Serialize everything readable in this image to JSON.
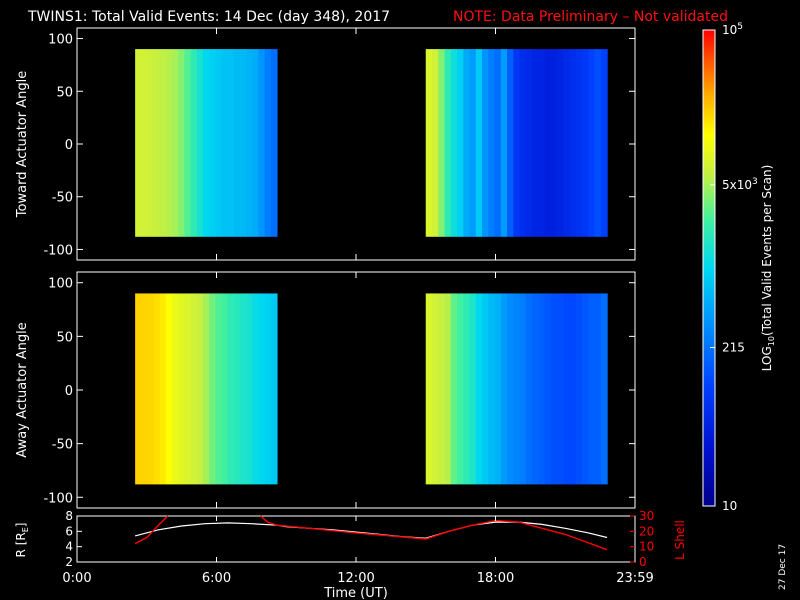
{
  "header": {
    "title": "TWINS1: Total Valid Events: 14 Dec (day 348), 2017",
    "note": "NOTE: Data Preliminary – Not validated",
    "note_color": "#ff1010"
  },
  "footer": {
    "date_stamp": "27 Dec 17"
  },
  "chart_data": [
    {
      "type": "heatmap",
      "panel": "top",
      "title": "",
      "ylabel": "Toward Actuator Angle",
      "ylim": [
        -110,
        110
      ],
      "yticks": [
        100,
        50,
        0,
        -50,
        -100
      ],
      "xlim": [
        0,
        24
      ],
      "data_blocks": [
        {
          "t_start": 2.5,
          "t_end": 8.6,
          "angle_min": -88,
          "angle_max": 90,
          "log10_value_profile": [
            3.85,
            3.85,
            3.83,
            3.8,
            3.78,
            3.75,
            3.7,
            3.6,
            3.45,
            3.3,
            3.15,
            3.0,
            2.95,
            2.9,
            2.85,
            2.85,
            2.8,
            2.8,
            2.75,
            2.7,
            2.55,
            2.4,
            2.3
          ]
        },
        {
          "t_start": 15.0,
          "t_end": 22.8,
          "angle_min": -88,
          "angle_max": 90,
          "log10_value_profile": [
            3.9,
            3.85,
            3.6,
            3.3,
            3.1,
            2.95,
            2.7,
            2.6,
            2.9,
            2.55,
            2.4,
            2.3,
            2.6,
            2.2,
            1.9,
            1.8,
            1.75,
            1.7,
            1.7,
            1.65,
            1.65,
            1.7,
            1.75,
            1.8,
            1.85,
            1.9,
            2.0,
            2.1,
            2.0
          ]
        }
      ]
    },
    {
      "type": "heatmap",
      "panel": "bottom",
      "title": "",
      "ylabel": "Away Actuator Angle",
      "ylim": [
        -110,
        110
      ],
      "yticks": [
        100,
        50,
        0,
        -50,
        -100
      ],
      "xlim": [
        0,
        24
      ],
      "data_blocks": [
        {
          "t_start": 2.5,
          "t_end": 8.6,
          "angle_min": -88,
          "angle_max": 90,
          "log10_value_profile": [
            4.3,
            4.3,
            4.28,
            4.25,
            4.2,
            4.1,
            4.0,
            3.95,
            3.9,
            3.85,
            3.8,
            3.7,
            3.55,
            3.45,
            3.4,
            3.3,
            3.25,
            3.2,
            3.15,
            3.05,
            3.0,
            2.95,
            2.9
          ]
        },
        {
          "t_start": 15.0,
          "t_end": 22.8,
          "angle_min": -88,
          "angle_max": 90,
          "log10_value_profile": [
            3.9,
            3.85,
            3.8,
            3.75,
            3.5,
            3.4,
            3.3,
            3.2,
            3.0,
            2.9,
            2.8,
            2.75,
            2.6,
            2.5,
            2.45,
            2.4,
            2.3,
            2.25,
            2.2,
            2.15,
            2.1,
            2.1,
            2.05,
            2.05,
            2.1,
            2.15,
            2.2,
            2.2,
            2.3
          ]
        }
      ]
    },
    {
      "type": "line",
      "panel": "orbit",
      "ylabel": "R [R",
      "ylabel_sub": "E",
      "ylabel_close": "]",
      "ylim": [
        2,
        8
      ],
      "yticks": [
        8,
        6,
        4,
        2
      ],
      "y2label": "L Shell",
      "y2lim": [
        0,
        30
      ],
      "y2ticks": [
        30,
        20,
        10,
        0
      ],
      "y2_color": "#ff0000",
      "xlabel": "Time (UT)",
      "xlim": [
        0,
        24
      ],
      "xticks": [
        0,
        6,
        12,
        18,
        24
      ],
      "xticklabels": [
        "0:00",
        "6:00",
        "12:00",
        "18:00",
        "23:59"
      ],
      "series": [
        {
          "axis": "left",
          "color": "#ffffff",
          "x": [
            2.5,
            3.5,
            4.5,
            5.5,
            6.5,
            7.5,
            8.6,
            9.0,
            10,
            11,
            12,
            13,
            14,
            15.0,
            16,
            17,
            18,
            19,
            20,
            21,
            22,
            22.8
          ],
          "y": [
            5.4,
            6.2,
            6.7,
            7.0,
            7.1,
            7.0,
            6.8,
            6.6,
            6.4,
            6.2,
            5.9,
            5.6,
            5.3,
            5.1,
            6.0,
            6.8,
            7.2,
            7.2,
            6.9,
            6.4,
            5.8,
            5.2
          ]
        },
        {
          "axis": "right",
          "segments": [
            {
              "x": [
                2.5,
                3.0,
                3.5,
                3.9
              ],
              "y": [
                12,
                16,
                24,
                30
              ]
            },
            {
              "x": [
                7.9,
                8.2,
                8.6,
                10,
                12,
                13.5,
                15.0,
                16,
                17,
                18,
                19,
                20,
                21,
                22.8
              ],
              "y": [
                30,
                26,
                24,
                22,
                19,
                17,
                15,
                20,
                24,
                27,
                26,
                22,
                18,
                8
              ]
            }
          ],
          "color": "#ff0000"
        }
      ]
    }
  ],
  "colorbar": {
    "label_main": "LOG",
    "label_sub": "10",
    "label_rest": "(Total Valid Events per Scan)",
    "log_range": [
      1,
      5
    ],
    "tick_labels": [
      {
        "log": 5,
        "base": "10",
        "exp": "5"
      },
      {
        "log": 3.699,
        "mant": "5x",
        "base": "10",
        "exp": "3"
      },
      {
        "log": 2.332,
        "plain": "215"
      },
      {
        "log": 1,
        "plain": "10"
      }
    ]
  }
}
